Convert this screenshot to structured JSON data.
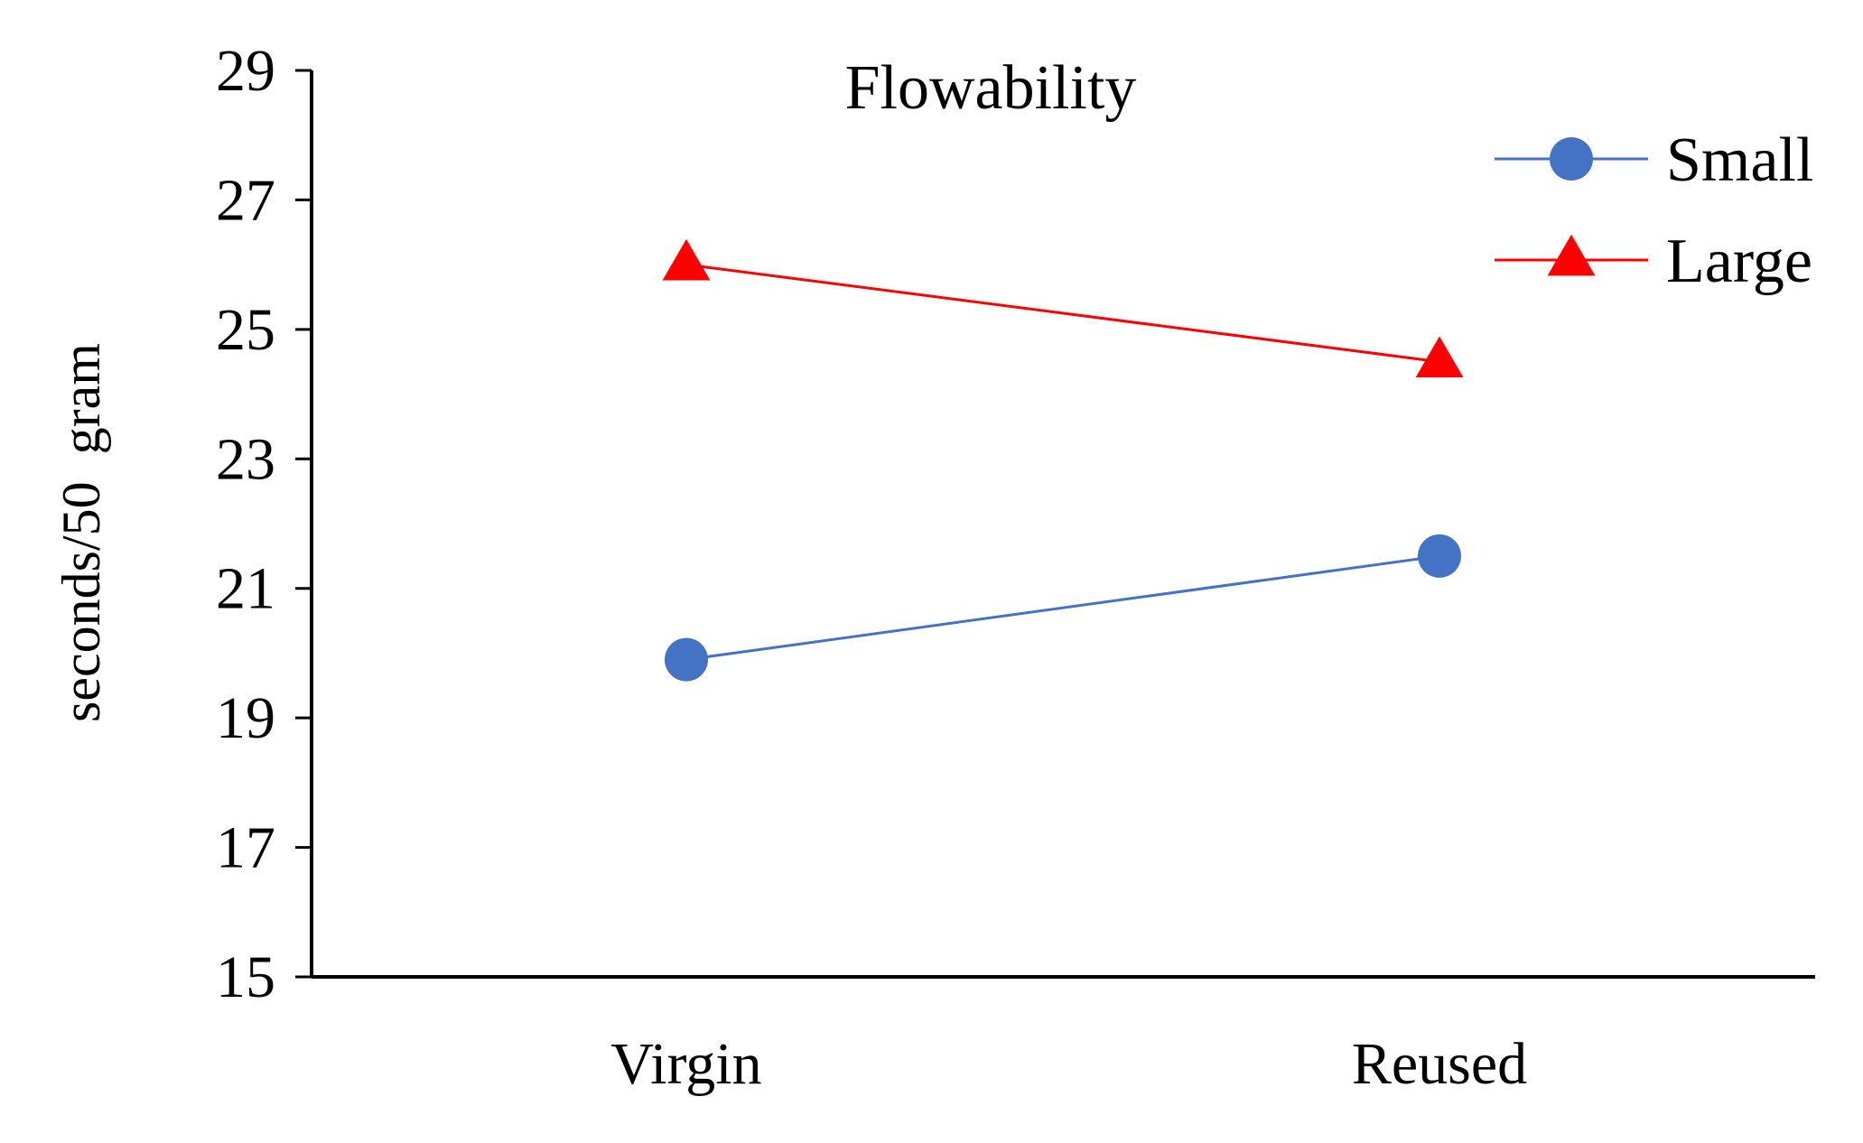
{
  "chart_data": {
    "type": "line",
    "title": "Flowability",
    "xlabel": "",
    "ylabel": "seconds/50  gram",
    "categories": [
      "Virgin",
      "Reused"
    ],
    "ylim": [
      15,
      29
    ],
    "yticks": [
      15,
      17,
      19,
      21,
      23,
      25,
      27,
      29
    ],
    "grid": false,
    "legend_position": "top-right",
    "series": [
      {
        "name": "Small",
        "values": [
          19.9,
          21.5
        ],
        "color": "#4472C4",
        "marker": "circle"
      },
      {
        "name": "Large",
        "values": [
          26.0,
          24.5
        ],
        "color": "#FF0000",
        "marker": "triangle"
      }
    ]
  }
}
